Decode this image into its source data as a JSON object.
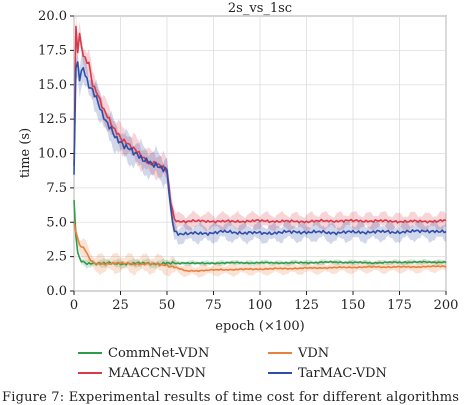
{
  "chart_data": {
    "type": "line",
    "title": "2s_vs_1sc",
    "xlabel": "epoch (×100)",
    "ylabel": "time (s)",
    "xlim": [
      0,
      200
    ],
    "ylim": [
      0,
      20
    ],
    "xticks": [
      0,
      25,
      50,
      75,
      100,
      125,
      150,
      175,
      200
    ],
    "yticks": [
      0,
      2.5,
      5.0,
      7.5,
      10.0,
      12.5,
      15.0,
      17.5,
      20.0
    ],
    "ytick_labels": [
      "0.0",
      "2.5",
      "5.0",
      "7.5",
      "10.0",
      "12.5",
      "15.0",
      "17.5",
      "20.0"
    ],
    "grid": true,
    "legend_position": "bottom",
    "series": [
      {
        "name": "CommNet-VDN",
        "color": "#2e9a4c",
        "x": [
          0,
          1,
          2,
          3,
          4,
          5,
          6,
          8,
          10,
          15,
          20,
          30,
          40,
          50,
          55,
          60,
          70,
          80,
          100,
          120,
          140,
          160,
          180,
          200
        ],
        "y": [
          6.5,
          4.0,
          2.8,
          2.3,
          2.15,
          2.1,
          2.05,
          2.0,
          2.05,
          2.0,
          2.0,
          2.0,
          2.0,
          2.0,
          2.0,
          2.05,
          2.0,
          2.05,
          2.05,
          2.05,
          2.1,
          2.05,
          2.1,
          2.1
        ]
      },
      {
        "name": "VDN",
        "color": "#e8803e",
        "x": [
          0,
          1,
          2,
          3,
          4,
          6,
          8,
          10,
          12,
          15,
          20,
          30,
          40,
          50,
          55,
          60,
          70,
          80,
          100,
          120,
          140,
          160,
          180,
          200
        ],
        "y": [
          5.0,
          4.4,
          3.8,
          3.4,
          3.2,
          3.0,
          2.4,
          2.05,
          2.0,
          2.0,
          2.0,
          2.0,
          1.95,
          1.9,
          1.7,
          1.45,
          1.5,
          1.55,
          1.6,
          1.65,
          1.7,
          1.75,
          1.75,
          1.8
        ]
      },
      {
        "name": "MAACCN-VDN",
        "color": "#d93a4a",
        "x": [
          0,
          1,
          2,
          3,
          5,
          8,
          10,
          12,
          15,
          20,
          25,
          30,
          35,
          40,
          45,
          48,
          50,
          52,
          54,
          56,
          60,
          70,
          80,
          100,
          120,
          140,
          160,
          180,
          200
        ],
        "y": [
          9.0,
          19.2,
          17.5,
          18.6,
          17.2,
          16.6,
          15.0,
          14.5,
          13.4,
          12.2,
          11.2,
          10.5,
          10.0,
          9.4,
          9.2,
          8.9,
          8.6,
          6.5,
          5.2,
          5.1,
          5.05,
          5.1,
          5.05,
          5.1,
          5.05,
          5.1,
          5.1,
          5.05,
          5.1
        ]
      },
      {
        "name": "TarMAC-VDN",
        "color": "#2f4ea8",
        "x": [
          0,
          1,
          2,
          3,
          5,
          8,
          10,
          12,
          15,
          20,
          25,
          30,
          35,
          40,
          45,
          48,
          50,
          52,
          54,
          56,
          60,
          70,
          80,
          100,
          120,
          140,
          160,
          180,
          190,
          200
        ],
        "y": [
          8.5,
          16.2,
          16.6,
          15.6,
          16.3,
          15.0,
          14.5,
          14.0,
          12.8,
          11.8,
          10.8,
          10.2,
          9.8,
          9.5,
          9.0,
          8.8,
          8.7,
          6.0,
          4.4,
          4.2,
          4.15,
          4.2,
          4.3,
          4.2,
          4.3,
          4.25,
          4.3,
          4.3,
          4.4,
          4.25
        ]
      }
    ]
  },
  "caption": "Figure 7: Experimental results of time cost for different algorithms"
}
